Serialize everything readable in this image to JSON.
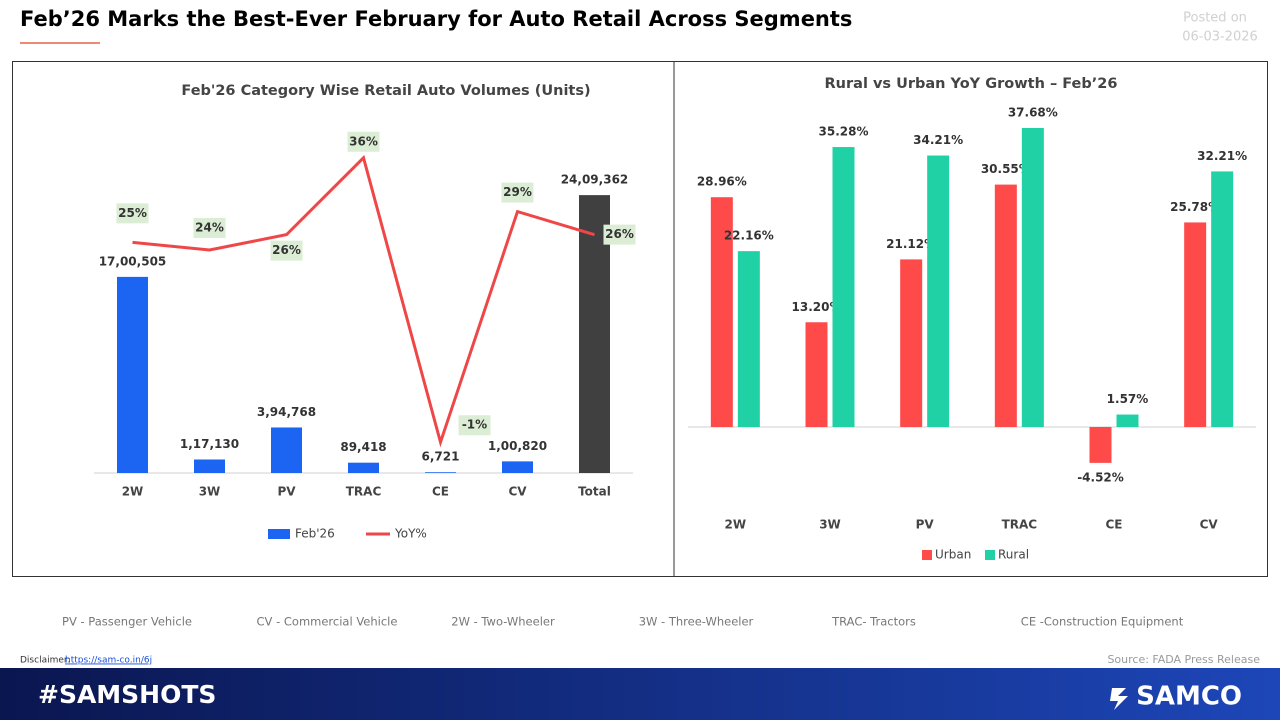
{
  "header": {
    "title": "Feb’26 Marks the Best-Ever February for Auto Retail Across Segments",
    "posted_label": "Posted on",
    "posted_date": "06-03-2026"
  },
  "chart_data": [
    {
      "type": "bar",
      "title": "Feb'26 Category Wise Retail Auto Volumes (Units)",
      "categories": [
        "2W",
        "3W",
        "PV",
        "TRAC",
        "CE",
        "CV",
        "Total"
      ],
      "series": [
        {
          "name": "Feb'26",
          "type": "bar",
          "color": "#1c64f2",
          "colors": [
            "#1c64f2",
            "#1c64f2",
            "#1c64f2",
            "#1c64f2",
            "#1c64f2",
            "#1c64f2",
            "#404040"
          ],
          "values": [
            1700505,
            117130,
            394768,
            89418,
            6721,
            100820,
            2409362
          ],
          "value_labels": [
            "17,00,505",
            "1,17,130",
            "3,94,768",
            "89,418",
            "6,721",
            "1,00,820",
            "24,09,362"
          ]
        },
        {
          "name": "YoY%",
          "type": "line",
          "axis": "y2",
          "color": "#ef4747",
          "values": [
            25,
            24,
            26,
            36,
            -1,
            29,
            26
          ],
          "value_labels": [
            "25%",
            "24%",
            "26%",
            "36%",
            "-1%",
            "29%",
            "26%"
          ]
        }
      ],
      "ylim": [
        0,
        3000000
      ],
      "y2lim": [
        -5,
        40
      ],
      "legend": "bottom"
    },
    {
      "type": "bar",
      "title": "Rural vs Urban YoY Growth – Feb’26",
      "categories": [
        "2W",
        "3W",
        "PV",
        "TRAC",
        "CE",
        "CV"
      ],
      "series": [
        {
          "name": "Urban",
          "type": "bar",
          "color": "#ff4a4a",
          "values": [
            28.96,
            13.2,
            21.12,
            30.55,
            -4.52,
            25.78
          ],
          "value_labels": [
            "28.96%",
            "13.20%",
            "21.12%",
            "30.55%",
            "-4.52%",
            "25.78%"
          ]
        },
        {
          "name": "Rural",
          "type": "bar",
          "color": "#1fd1a5",
          "values": [
            22.16,
            35.28,
            34.21,
            37.68,
            1.57,
            32.21
          ],
          "value_labels": [
            "22.16%",
            "35.28%",
            "34.21%",
            "37.68%",
            "1.57%",
            "32.21%"
          ]
        }
      ],
      "ylim": [
        -10,
        40
      ],
      "legend": "bottom"
    }
  ],
  "footer": {
    "abbreviations": [
      "PV - Passenger Vehicle",
      "CV - Commercial Vehicle",
      "2W - Two-Wheeler",
      "3W - Three-Wheeler",
      "TRAC- Tractors",
      "CE -Construction Equipment"
    ],
    "disclaimer_label": "Disclaimer:",
    "disclaimer_link": "https://sam-co.in/6j",
    "source": "Source: FADA Press Release",
    "hashtag": "#SAMSHOTS",
    "brand": "SAMCO"
  }
}
